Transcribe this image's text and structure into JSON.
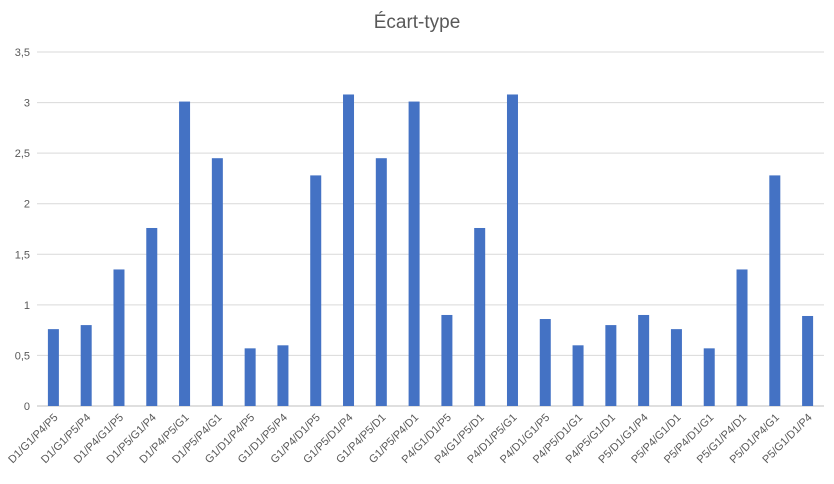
{
  "chart_data": {
    "type": "bar",
    "title": "Écart-type",
    "xlabel": "",
    "ylabel": "",
    "ylim": [
      0,
      3.5
    ],
    "yticks": [
      0,
      0.5,
      1,
      1.5,
      2,
      2.5,
      3,
      3.5
    ],
    "ytick_labels": [
      "0",
      "0,5",
      "1",
      "1,5",
      "2",
      "2,5",
      "3",
      "3,5"
    ],
    "grid": true,
    "legend": "none",
    "bar_color": "#4472C4",
    "categories": [
      "D1/G1/P4/P5",
      "D1/G1/P5/P4",
      "D1/P4/G1/P5",
      "D1/P5/G1/P4",
      "D1/P4/P5/G1",
      "D1/P5/P4/G1",
      "G1/D1/P4/P5",
      "G1/D1/P5/P4",
      "G1/P4/D1/P5",
      "G1/P5/D1/P4",
      "G1/P4/P5/D1",
      "G1/P5/P4/D1",
      "P4/G1/D1/P5",
      "P4/G1/P5/D1",
      "P4/D1/P5/G1",
      "P4/D1/G1/P5",
      "P4/P5/D1/G1",
      "P4/P5/G1/D1",
      "P5/D1/G1/P4",
      "P5/P4/G1/D1",
      "P5/P4/D1/G1",
      "P5/G1/P4/D1",
      "P5/D1/P4/G1",
      "P5/G1/D1/P4"
    ],
    "values": [
      0.76,
      0.8,
      1.35,
      1.76,
      3.01,
      2.45,
      0.57,
      0.6,
      2.28,
      3.08,
      2.45,
      3.01,
      0.9,
      1.76,
      3.08,
      0.86,
      0.6,
      0.8,
      0.9,
      0.76,
      0.57,
      1.35,
      2.28,
      0.89
    ]
  }
}
